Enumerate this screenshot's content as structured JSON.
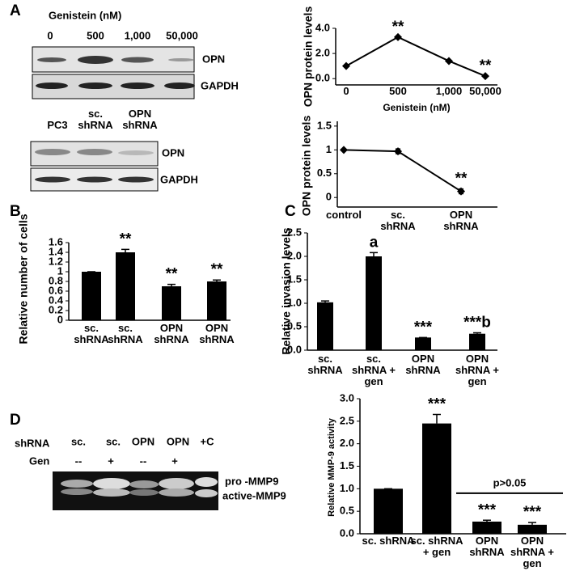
{
  "panel_labels": [
    "A",
    "B",
    "C",
    "D"
  ],
  "blot_genistein": {
    "header": "Genistein (nM)",
    "lanes": [
      "0",
      "500",
      "1,000",
      "50,000"
    ],
    "rows": [
      "OPN",
      "GAPDH"
    ]
  },
  "blot_shrna": {
    "lanes": [
      "PC3",
      "sc. shRNA",
      "OPN shRNA"
    ],
    "rows": [
      "OPN",
      "GAPDH"
    ]
  },
  "gel_mmp9": {
    "row_labels": [
      "shRNA",
      "Gen"
    ],
    "shrna_lanes": [
      "sc.",
      "sc.",
      "OPN",
      "OPN",
      "+C"
    ],
    "gen_lanes": [
      "--",
      "+",
      "--",
      "+"
    ],
    "bands": [
      "pro -MMP9",
      "active-MMP9"
    ]
  },
  "chart_data": [
    {
      "type": "line",
      "y_label": "OPN protein levels",
      "x_label": "Genistein (nM)",
      "categories": [
        "0",
        "500",
        "1,000",
        "50,000"
      ],
      "values": [
        1.0,
        3.3,
        1.4,
        0.2
      ],
      "significance": [
        null,
        "**",
        null,
        "**"
      ],
      "color": "#000000",
      "ylim": [
        -0.5,
        4.0
      ],
      "yticks": [
        {
          "value": 0,
          "label": "0.0"
        },
        {
          "value": 2,
          "label": "2.0"
        },
        {
          "value": 4,
          "label": "4.0"
        }
      ]
    },
    {
      "type": "line",
      "y_label": "OPN protein levels",
      "categories": [
        "control",
        "sc. shRNA",
        "OPN shRNA"
      ],
      "values": [
        1,
        0.97,
        0.13
      ],
      "errors": [
        0,
        0.05,
        0.05
      ],
      "significance": [
        null,
        null,
        "**"
      ],
      "color": "#000000",
      "ylim": [
        -0.2,
        1.6
      ],
      "yticks": [
        0,
        0.5,
        1,
        1.5
      ]
    },
    {
      "type": "bar",
      "y_label": "Relative number of cells",
      "categories": [
        "sc. shRNA",
        "sc. shRNA",
        "OPN shRNA",
        "OPN shRNA"
      ],
      "values": [
        1,
        1.4,
        0.7,
        0.8
      ],
      "errors": [
        0,
        0.06,
        0.04,
        0.03
      ],
      "significance": [
        null,
        "**",
        "**",
        "**"
      ],
      "color": "#000000",
      "ylim": [
        0,
        1.6
      ],
      "yticks": [
        0,
        0.2,
        0.4,
        0.6,
        0.8,
        1,
        1.2,
        1.4,
        1.6
      ]
    },
    {
      "type": "bar",
      "y_label": "Relative invasion levels",
      "categories": [
        "sc. shRNA",
        "sc. shRNA + gen",
        "OPN shRNA",
        "OPN shRNA + gen"
      ],
      "values": [
        1.02,
        2.0,
        0.27,
        0.35
      ],
      "errors": [
        0.03,
        0.08,
        0,
        0.02
      ],
      "significance": [
        null,
        "a",
        "***",
        "***b"
      ],
      "color": "#000000",
      "ylim": [
        0,
        2.5
      ],
      "yticks": [
        {
          "value": 0,
          "label": "0.0"
        },
        {
          "value": 0.5,
          "label": "0.5"
        },
        {
          "value": 1,
          "label": "1.0"
        },
        {
          "value": 1.5,
          "label": "1.5"
        },
        {
          "value": 2,
          "label": "2.0"
        },
        {
          "value": 2.5,
          "label": "2.5"
        }
      ]
    },
    {
      "type": "bar",
      "y_label": "Relative MMP-9 activity",
      "categories": [
        "sc. shRNA",
        "sc. shRNA + gen",
        "OPN shRNA",
        "OPN shRNA + gen"
      ],
      "values": [
        1.0,
        2.45,
        0.27,
        0.2
      ],
      "errors": [
        0,
        0.2,
        0.03,
        0.05
      ],
      "significance": [
        null,
        "***",
        "***",
        "***"
      ],
      "annotation": "p>0.05",
      "color": "#000000",
      "ylim": [
        0,
        3.0
      ],
      "yticks": [
        {
          "value": 0,
          "label": "0.0"
        },
        {
          "value": 0.5,
          "label": "0.5"
        },
        {
          "value": 1,
          "label": "1.0"
        },
        {
          "value": 1.5,
          "label": "1.5"
        },
        {
          "value": 2,
          "label": "2.0"
        },
        {
          "value": 2.5,
          "label": "2.5"
        },
        {
          "value": 3,
          "label": "3.0"
        }
      ]
    }
  ]
}
